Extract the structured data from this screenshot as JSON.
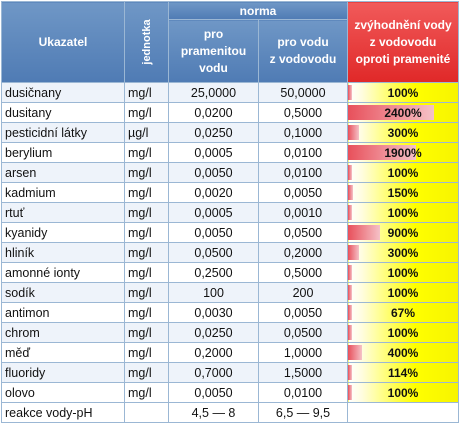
{
  "header": {
    "indicator": "Ukazatel",
    "unit": "jednotka",
    "norm": "norma",
    "spring_lines": [
      "pro",
      "pramenitou",
      "vodu"
    ],
    "tap_lines": [
      "pro vodu",
      "z vodovodu"
    ],
    "increase_lines": [
      "zvýhodnění vody",
      "z vodovodu",
      "oproti pramenité"
    ]
  },
  "rows": [
    {
      "name": "dusičnany",
      "unit": "mg/l",
      "spring": "25,0000",
      "tap": "50,0000",
      "pct": "100%",
      "pct_value": 100
    },
    {
      "name": "dusitany",
      "unit": "mg/l",
      "spring": "0,0200",
      "tap": "0,5000",
      "pct": "2400%",
      "pct_value": 2400
    },
    {
      "name": "pesticidní látky",
      "unit": "µg/l",
      "spring": "0,0250",
      "tap": "0,1000",
      "pct": "300%",
      "pct_value": 300
    },
    {
      "name": "berylium",
      "unit": "mg/l",
      "spring": "0,0005",
      "tap": "0,0100",
      "pct": "1900%",
      "pct_value": 1900
    },
    {
      "name": "arsen",
      "unit": "mg/l",
      "spring": "0,0050",
      "tap": "0,0100",
      "pct": "100%",
      "pct_value": 100
    },
    {
      "name": "kadmium",
      "unit": "mg/l",
      "spring": "0,0020",
      "tap": "0,0050",
      "pct": "150%",
      "pct_value": 150
    },
    {
      "name": "rtuť",
      "unit": "mg/l",
      "spring": "0,0005",
      "tap": "0,0010",
      "pct": "100%",
      "pct_value": 100
    },
    {
      "name": "kyanidy",
      "unit": "mg/l",
      "spring": "0,0050",
      "tap": "0,0500",
      "pct": "900%",
      "pct_value": 900
    },
    {
      "name": "hliník",
      "unit": "mg/l",
      "spring": "0,0500",
      "tap": "0,2000",
      "pct": "300%",
      "pct_value": 300
    },
    {
      "name": "amonné ionty",
      "unit": "mg/l",
      "spring": "0,2500",
      "tap": "0,5000",
      "pct": "100%",
      "pct_value": 100
    },
    {
      "name": "sodík",
      "unit": "mg/l",
      "spring": "100",
      "tap": "200",
      "pct": "100%",
      "pct_value": 100
    },
    {
      "name": "antimon",
      "unit": "mg/l",
      "spring": "0,0030",
      "tap": "0,0050",
      "pct": "67%",
      "pct_value": 67
    },
    {
      "name": "chrom",
      "unit": "mg/l",
      "spring": "0,0250",
      "tap": "0,0500",
      "pct": "100%",
      "pct_value": 100
    },
    {
      "name": "měď",
      "unit": "mg/l",
      "spring": "0,2000",
      "tap": "1,0000",
      "pct": "400%",
      "pct_value": 400
    },
    {
      "name": "fluoridy",
      "unit": "mg/l",
      "spring": "0,7000",
      "tap": "1,5000",
      "pct": "114%",
      "pct_value": 114
    },
    {
      "name": "olovo",
      "unit": "mg/l",
      "spring": "0,0050",
      "tap": "0,0100",
      "pct": "100%",
      "pct_value": 100
    },
    {
      "name": "reakce vody-pH",
      "unit": "",
      "spring": "4,5 — 8",
      "tap": "6,5 — 9,5",
      "pct": "",
      "pct_value": 0
    }
  ],
  "colors": {
    "header_blue": "#4f7bb4",
    "header_red": "#e02828",
    "bar_red": "#e8505b",
    "yellow": "#ffff00"
  }
}
